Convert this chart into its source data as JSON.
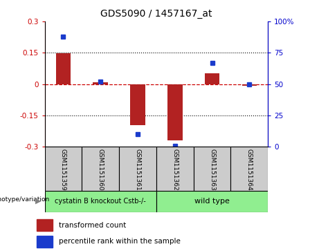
{
  "title": "GDS5090 / 1457167_at",
  "samples": [
    "GSM1151359",
    "GSM1151360",
    "GSM1151361",
    "GSM1151362",
    "GSM1151363",
    "GSM1151364"
  ],
  "transformed_count": [
    0.148,
    0.008,
    -0.195,
    -0.27,
    0.052,
    -0.008
  ],
  "percentile_rank": [
    88,
    52,
    10,
    1,
    67,
    50
  ],
  "ylim_left": [
    -0.3,
    0.3
  ],
  "ylim_right": [
    0,
    100
  ],
  "yticks_left": [
    -0.3,
    -0.15,
    0,
    0.15,
    0.3
  ],
  "yticks_right": [
    0,
    25,
    50,
    75,
    100
  ],
  "ytick_labels_left": [
    "-0.3",
    "-0.15",
    "0",
    "0.15",
    "0.3"
  ],
  "ytick_labels_right": [
    "0",
    "25",
    "50",
    "75",
    "100%"
  ],
  "bar_color": "#b22222",
  "dot_color": "#1a3bcc",
  "bar_width": 0.4,
  "group1_label": "cystatin B knockout Cstb-/-",
  "group2_label": "wild type",
  "group1_color": "#90ee90",
  "group2_color": "#90ee90",
  "group_label_prefix": "genotype/variation",
  "legend_bar_label": "transformed count",
  "legend_dot_label": "percentile rank within the sample",
  "grid_color": "#000000",
  "zero_line_color": "#cc0000",
  "bg_plot": "#ffffff",
  "bg_label_area": "#cccccc",
  "tick_label_color_left": "#cc0000",
  "tick_label_color_right": "#0000cc"
}
